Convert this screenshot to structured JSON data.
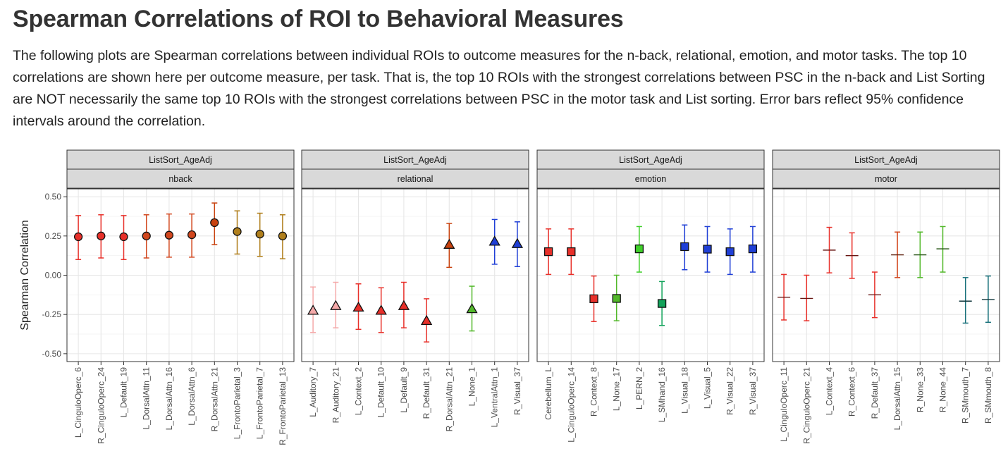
{
  "heading": "Spearman Correlations of ROI to Behavioral Measures",
  "description": "The following plots are Spearman correlations between individual ROIs to outcome measures for the n-back, relational, emotion, and motor tasks. The top 10 correlations are shown here per outcome measure, per task. That is, the top 10 ROIs with the strongest correlations between PSC in the n-back and List Sorting are NOT necessarily the same top 10 ROIs with the strongest correlations between PSC in the motor task and List sorting. Error bars reflect 95% confidence intervals around the correlation.",
  "chart_data": {
    "type": "scatter",
    "ylabel": "Spearman Correlation",
    "ylim": [
      -0.55,
      0.55
    ],
    "yticks": [
      -0.5,
      -0.25,
      0.0,
      0.25,
      0.5
    ],
    "ytick_labels": [
      "-0.50",
      "-0.25",
      "0.00",
      "0.25",
      "0.50"
    ],
    "grid": true,
    "facets": [
      {
        "strip_top": "ListSort_AgeAdj",
        "strip_bottom": "nback",
        "marker": "circle",
        "categories": [
          "L_CinguloOperc_6",
          "R_CinguloOperc_24",
          "L_Default_19",
          "L_DorsalAttn_11",
          "L_DorsalAttn_16",
          "L_DorsalAttn_6",
          "R_DorsalAttn_21",
          "L_FrontoParietal_3",
          "L_FrontoParietal_7",
          "R_FrontoParietal_13"
        ],
        "values": [
          0.245,
          0.25,
          0.245,
          0.25,
          0.255,
          0.258,
          0.335,
          0.278,
          0.262,
          0.25
        ],
        "ci_low": [
          0.1,
          0.11,
          0.1,
          0.11,
          0.115,
          0.115,
          0.195,
          0.135,
          0.12,
          0.105
        ],
        "ci_high": [
          0.38,
          0.385,
          0.38,
          0.385,
          0.39,
          0.39,
          0.46,
          0.41,
          0.395,
          0.385
        ],
        "colors": [
          "#e8302a",
          "#e8302a",
          "#e8302a",
          "#d2471e",
          "#d2471e",
          "#d2471e",
          "#c8420f",
          "#b07f1c",
          "#b07f1c",
          "#b07f1c"
        ]
      },
      {
        "strip_top": "ListSort_AgeAdj",
        "strip_bottom": "relational",
        "marker": "triangle",
        "categories": [
          "L_Auditory_7",
          "R_Auditory_21",
          "L_Context_2",
          "L_Default_10",
          "L_Default_9",
          "R_Default_31",
          "R_DorsalAttn_21",
          "L_None_1",
          "L_VentralAttn_1",
          "R_Visual_37"
        ],
        "values": [
          -0.225,
          -0.195,
          -0.205,
          -0.225,
          -0.195,
          -0.29,
          0.195,
          -0.215,
          0.215,
          0.2
        ],
        "ci_low": [
          -0.365,
          -0.335,
          -0.345,
          -0.365,
          -0.335,
          -0.425,
          0.05,
          -0.355,
          0.07,
          0.055
        ],
        "ci_high": [
          -0.075,
          -0.045,
          -0.055,
          -0.08,
          -0.045,
          -0.15,
          0.33,
          -0.07,
          0.355,
          0.34
        ],
        "colors": [
          "#f5a9a9",
          "#f5a9a9",
          "#e8302a",
          "#e8302a",
          "#e8302a",
          "#e8302a",
          "#c8420f",
          "#52b82a",
          "#1f3fd6",
          "#1f3fd6"
        ]
      },
      {
        "strip_top": "ListSort_AgeAdj",
        "strip_bottom": "emotion",
        "marker": "square",
        "categories": [
          "Cerebellum_L",
          "L_CinguloOperc_14",
          "R_Context_8",
          "L_None_17",
          "L_PERN_2",
          "L_SMhand_16",
          "L_Visual_18",
          "L_Visual_5",
          "R_Visual_22",
          "R_Visual_37"
        ],
        "values": [
          0.15,
          0.15,
          -0.15,
          -0.148,
          0.168,
          -0.18,
          0.182,
          0.166,
          0.15,
          0.168
        ],
        "ci_low": [
          0.005,
          0.005,
          -0.295,
          -0.29,
          0.02,
          -0.32,
          0.035,
          0.02,
          0.005,
          0.02
        ],
        "ci_high": [
          0.295,
          0.295,
          -0.005,
          0.0,
          0.31,
          -0.04,
          0.32,
          0.31,
          0.295,
          0.31
        ],
        "colors": [
          "#e8302a",
          "#e8302a",
          "#e8302a",
          "#52b82a",
          "#3fcf2a",
          "#12a35a",
          "#1f3fd6",
          "#1f3fd6",
          "#1f3fd6",
          "#1f3fd6"
        ]
      },
      {
        "strip_top": "ListSort_AgeAdj",
        "strip_bottom": "motor",
        "marker": "cross",
        "categories": [
          "L_CinguloOperc_11",
          "R_CinguloOperc_21",
          "L_Context_4",
          "R_Context_6",
          "R_Default_37",
          "L_DorsalAttn_15",
          "R_None_33",
          "R_None_44",
          "R_SMmouth_7",
          "R_SMmouth_8"
        ],
        "values": [
          -0.14,
          -0.148,
          0.16,
          0.125,
          -0.125,
          0.13,
          0.13,
          0.168,
          -0.165,
          -0.155
        ],
        "ci_low": [
          -0.285,
          -0.29,
          0.015,
          -0.02,
          -0.27,
          -0.015,
          -0.015,
          0.02,
          -0.305,
          -0.3
        ],
        "ci_high": [
          0.005,
          0.0,
          0.305,
          0.27,
          0.02,
          0.275,
          0.275,
          0.31,
          -0.015,
          -0.005
        ],
        "colors": [
          "#e8302a",
          "#e8302a",
          "#e8302a",
          "#e8302a",
          "#e8302a",
          "#d2471e",
          "#52b82a",
          "#52b82a",
          "#17707a",
          "#17707a"
        ]
      }
    ]
  }
}
